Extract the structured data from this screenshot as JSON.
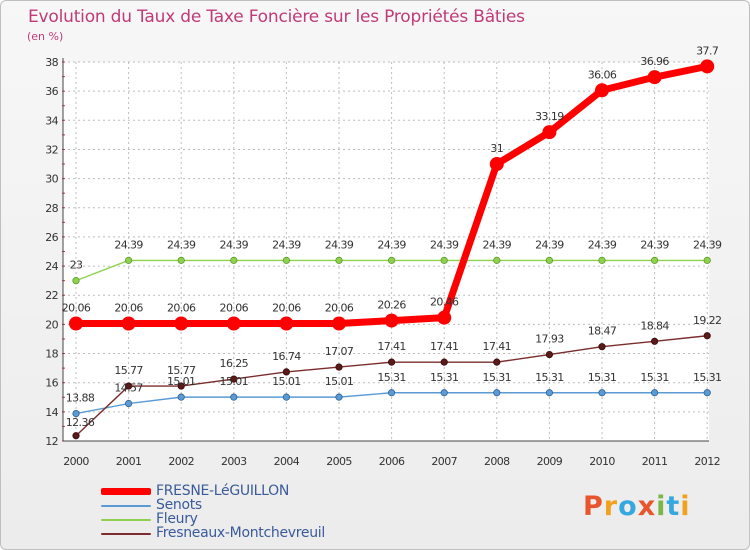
{
  "chart_data": {
    "type": "line",
    "title": "Evolution du Taux de Taxe Foncière sur les Propriétés Bâties",
    "unit_label": "(en %)",
    "x": [
      "2000",
      "2001",
      "2002",
      "2003",
      "2004",
      "2005",
      "2006",
      "2007",
      "2008",
      "2009",
      "2010",
      "2011",
      "2012"
    ],
    "ylim": [
      12,
      38
    ],
    "yticks": [
      "12",
      "14",
      "16",
      "18",
      "20",
      "22",
      "24",
      "26",
      "28",
      "30",
      "32",
      "34",
      "36",
      "38"
    ],
    "series": [
      {
        "name": "FRESNE-LéGUILLON",
        "color": "#ff0000",
        "values": [
          20.06,
          20.06,
          20.06,
          20.06,
          20.06,
          20.06,
          20.26,
          20.46,
          31,
          33.19,
          36.06,
          36.96,
          37.7
        ],
        "labels": [
          "20.06",
          "20.06",
          "20.06",
          "20.06",
          "20.06",
          "20.06",
          "20.26",
          "20.46",
          "31",
          "33.19",
          "36.06",
          "36.96",
          "37.7"
        ]
      },
      {
        "name": "Senots",
        "color": "#5b9bd5",
        "values": [
          13.88,
          14.57,
          15.01,
          15.01,
          15.01,
          15.01,
          15.31,
          15.31,
          15.31,
          15.31,
          15.31,
          15.31,
          15.31
        ],
        "labels": [
          "13.88",
          "14.57",
          "15.01",
          "15.01",
          "15.01",
          "15.01",
          "15.31",
          "15.31",
          "15.31",
          "15.31",
          "15.31",
          "15.31",
          "15.31"
        ]
      },
      {
        "name": "Fleury",
        "color": "#8fd14f",
        "values": [
          23,
          24.39,
          24.39,
          24.39,
          24.39,
          24.39,
          24.39,
          24.39,
          24.39,
          24.39,
          24.39,
          24.39,
          24.39
        ],
        "labels": [
          "23",
          "24.39",
          "24.39",
          "24.39",
          "24.39",
          "24.39",
          "24.39",
          "24.39",
          "24.39",
          "24.39",
          "24.39",
          "24.39",
          "24.39"
        ]
      },
      {
        "name": "Fresneaux-Montchevreuil",
        "color": "#7b2c2c",
        "values": [
          12.36,
          15.77,
          15.77,
          16.25,
          16.74,
          17.07,
          17.41,
          17.41,
          17.41,
          17.93,
          18.47,
          18.84,
          19.22
        ],
        "labels": [
          "12.36",
          "15.77",
          "15.77",
          "16.25",
          "16.74",
          "17.07",
          "17.41",
          "17.41",
          "17.41",
          "17.93",
          "18.47",
          "18.84",
          "19.22"
        ]
      }
    ]
  },
  "logo": {
    "text": "Proxiti",
    "colors": [
      "#e8542b",
      "#f0a21f",
      "#35a8e0",
      "#e8542b",
      "#7ab648",
      "#35a8e0",
      "#f0a21f"
    ]
  }
}
